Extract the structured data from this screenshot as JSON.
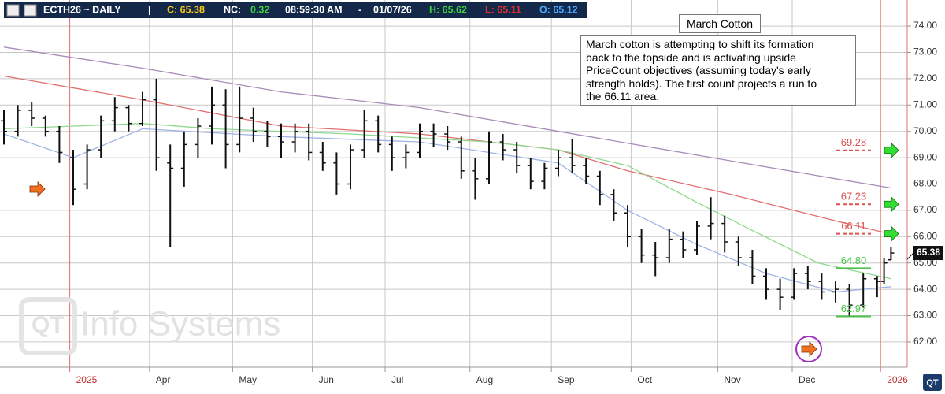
{
  "chart_data": {
    "type": "ohlc",
    "header": [
      {
        "text": "ECTH26 ~ DAILY",
        "color": "#ffffff"
      },
      {
        "text": "|",
        "color": "#ffffff"
      },
      {
        "text": "C: 65.38",
        "color": "#f5c518"
      },
      {
        "text": "NC:",
        "color": "#ffffff"
      },
      {
        "text": "0.32",
        "color": "#3ecf3e"
      },
      {
        "text": "08:59:30 AM",
        "color": "#ffffff"
      },
      {
        "text": "-",
        "color": "#ffffff"
      },
      {
        "text": "01/07/26",
        "color": "#ffffff"
      },
      {
        "text": "H: 65.62",
        "color": "#3ecf3e"
      },
      {
        "text": "L: 65.11",
        "color": "#e03030"
      },
      {
        "text": "O: 65.12",
        "color": "#4aa8ff"
      }
    ],
    "annotation": {
      "title": "March Cotton",
      "lines": [
        "March cotton is attempting to shift its formation",
        "back to the topside and is activating upside",
        "PriceCount objectives (assuming today's early",
        "strength holds).  The first count projects a run to",
        "the 66.11 area."
      ]
    },
    "watermark": "Info Systems",
    "bar_color": "#111111",
    "x": [
      0,
      4,
      8,
      12,
      16,
      20,
      24,
      28,
      32,
      36,
      40,
      44,
      48,
      52,
      56,
      60,
      64,
      68,
      72,
      76,
      80,
      84,
      88,
      92,
      96,
      100,
      104,
      108,
      112,
      116,
      120,
      124,
      128,
      132,
      136,
      140,
      144,
      148,
      152,
      156,
      160,
      164,
      168,
      172,
      176,
      180,
      184,
      188,
      192,
      196,
      200,
      204,
      208,
      212,
      216,
      220,
      224,
      228,
      232,
      236,
      240,
      244,
      248,
      252,
      254,
      256
    ],
    "open": [
      70.4,
      70.0,
      70.8,
      70.5,
      70.0,
      69.0,
      68.0,
      69.3,
      70.4,
      70.9,
      70.3,
      71.2,
      68.8,
      68.6,
      69.5,
      70.2,
      71.0,
      69.5,
      70.5,
      70.0,
      69.8,
      69.6,
      70.0,
      69.2,
      68.8,
      68.0,
      69.3,
      70.4,
      69.5,
      69.0,
      69.2,
      70.0,
      69.9,
      69.6,
      68.5,
      68.2,
      69.6,
      69.3,
      68.7,
      68.1,
      68.6,
      69.0,
      68.7,
      68.3,
      67.6,
      66.9,
      66.0,
      65.3,
      65.2,
      65.9,
      65.5,
      66.4,
      66.5,
      65.8,
      65.2,
      64.5,
      64.0,
      63.7,
      64.6,
      64.3,
      63.9,
      64.0,
      63.4,
      64.4,
      64.3,
      65.12
    ],
    "high": [
      70.8,
      71.0,
      71.1,
      70.6,
      70.2,
      69.3,
      69.5,
      70.6,
      71.3,
      71.0,
      71.5,
      72.0,
      69.5,
      70.0,
      70.5,
      71.7,
      71.6,
      71.7,
      70.9,
      70.4,
      70.3,
      70.3,
      70.3,
      69.6,
      69.2,
      69.5,
      70.8,
      70.6,
      69.8,
      69.5,
      70.3,
      70.3,
      70.2,
      69.8,
      69.0,
      70.0,
      69.9,
      69.6,
      69.0,
      68.8,
      69.3,
      69.7,
      69.0,
      68.5,
      67.8,
      67.2,
      66.3,
      65.8,
      66.3,
      66.2,
      66.6,
      67.5,
      66.8,
      66.0,
      65.5,
      64.8,
      64.4,
      64.8,
      64.9,
      64.6,
      64.3,
      64.2,
      64.6,
      64.5,
      65.2,
      65.62
    ],
    "low": [
      69.5,
      69.8,
      70.2,
      69.8,
      68.8,
      67.2,
      67.8,
      69.0,
      70.0,
      70.0,
      70.2,
      68.5,
      65.6,
      67.9,
      69.0,
      69.5,
      68.6,
      69.2,
      69.6,
      69.4,
      69.0,
      69.2,
      68.9,
      68.5,
      67.6,
      67.8,
      69.0,
      69.2,
      68.5,
      68.6,
      69.0,
      69.4,
      69.3,
      68.2,
      67.4,
      68.0,
      68.9,
      68.4,
      67.8,
      67.8,
      68.3,
      68.4,
      68.0,
      67.2,
      66.6,
      65.6,
      65.0,
      64.5,
      65.0,
      65.2,
      65.3,
      65.9,
      65.4,
      64.9,
      64.2,
      63.6,
      63.2,
      63.6,
      64.0,
      63.6,
      63.5,
      63.0,
      63.3,
      63.7,
      64.2,
      65.11
    ],
    "close": [
      70.0,
      70.8,
      70.5,
      70.0,
      69.2,
      67.8,
      69.3,
      70.4,
      70.9,
      70.3,
      71.2,
      69.0,
      68.6,
      69.5,
      70.2,
      71.0,
      69.5,
      70.5,
      70.0,
      69.8,
      69.6,
      70.0,
      69.2,
      68.8,
      68.0,
      69.3,
      70.4,
      69.5,
      69.0,
      69.2,
      70.0,
      69.9,
      69.6,
      68.5,
      68.2,
      69.6,
      69.3,
      68.7,
      68.1,
      68.6,
      69.0,
      68.7,
      68.3,
      67.6,
      66.9,
      66.0,
      65.3,
      65.2,
      65.9,
      65.5,
      66.4,
      66.5,
      65.8,
      65.2,
      64.5,
      64.0,
      63.7,
      64.6,
      64.3,
      63.9,
      64.0,
      63.4,
      64.4,
      64.3,
      65.0,
      65.38
    ],
    "averages": [
      {
        "color": "#a98bb8",
        "x": [
          0,
          40,
          80,
          120,
          160,
          200,
          240,
          256
        ],
        "values": [
          73.2,
          72.4,
          71.5,
          70.9,
          70.0,
          69.1,
          68.2,
          67.85
        ]
      },
      {
        "color": "#e07070",
        "x": [
          0,
          40,
          80,
          120,
          160,
          180,
          210,
          240,
          256
        ],
        "values": [
          72.1,
          71.2,
          70.2,
          69.9,
          69.3,
          68.5,
          67.6,
          66.6,
          66.1
        ]
      },
      {
        "color": "#8fd88f",
        "x": [
          0,
          40,
          60,
          100,
          140,
          160,
          180,
          200,
          215,
          235,
          256
        ],
        "values": [
          70.1,
          70.3,
          70.1,
          69.9,
          69.6,
          69.3,
          68.7,
          67.3,
          66.3,
          65.0,
          64.4
        ]
      },
      {
        "color": "#9fb4e6",
        "x": [
          0,
          20,
          40,
          80,
          120,
          160,
          180,
          200,
          220,
          240,
          256
        ],
        "values": [
          69.9,
          69.0,
          70.1,
          69.8,
          69.6,
          68.8,
          67.0,
          65.7,
          64.6,
          63.9,
          64.1
        ]
      }
    ],
    "levels": [
      {
        "value": 69.28,
        "color": "#d9534f",
        "dashed": true
      },
      {
        "value": 67.23,
        "color": "#d9534f",
        "dashed": true
      },
      {
        "value": 66.11,
        "color": "#d9534f",
        "dashed": true
      },
      {
        "value": 64.8,
        "label": "64.80",
        "color": "#4cc24c",
        "dashed": false
      },
      {
        "value": 62.97,
        "color": "#4cc24c",
        "dashed": false
      }
    ],
    "last_price": {
      "value": 65.38,
      "label": "65.38"
    },
    "xlim": [
      0,
      260
    ],
    "xticks": [
      {
        "value": 19,
        "label": "2025"
      },
      {
        "value": 42,
        "label": "Apr"
      },
      {
        "value": 66,
        "label": "May"
      },
      {
        "value": 89,
        "label": "Jun"
      },
      {
        "value": 110,
        "label": "Jul"
      },
      {
        "value": 134.5,
        "label": "Aug"
      },
      {
        "value": 158,
        "label": "Sep"
      },
      {
        "value": 181,
        "label": "Oct"
      },
      {
        "value": 206,
        "label": "Nov"
      },
      {
        "value": 227.5,
        "label": "Dec"
      },
      {
        "value": 253,
        "label": "2026"
      }
    ],
    "ylim": [
      61.04,
      74.99
    ],
    "yticks": [
      {
        "value": 62,
        "label": "62.00"
      },
      {
        "value": 63,
        "label": "63.00"
      },
      {
        "value": 64,
        "label": "64.00"
      },
      {
        "value": 65,
        "label": "65.00"
      },
      {
        "value": 66,
        "label": "66.00"
      },
      {
        "value": 67,
        "label": "67.00"
      },
      {
        "value": 68,
        "label": "68.00"
      },
      {
        "value": 69,
        "label": "69.00"
      },
      {
        "value": 70,
        "label": "70.00"
      },
      {
        "value": 71,
        "label": "71.00"
      },
      {
        "value": 72,
        "label": "72.00"
      },
      {
        "value": 73,
        "label": "73.00"
      },
      {
        "value": 74,
        "label": "74.00"
      }
    ],
    "grid": true
  }
}
